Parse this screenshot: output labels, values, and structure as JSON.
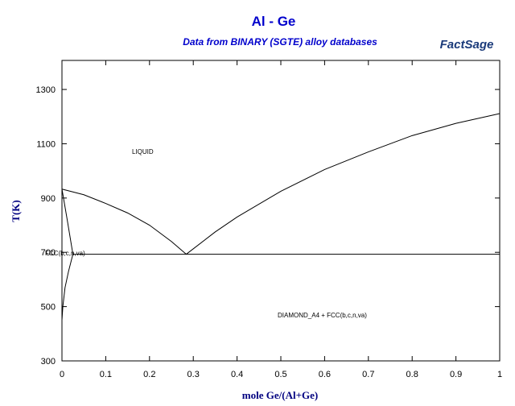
{
  "chart_data": {
    "type": "line",
    "title": "Al - Ge",
    "subtitle": "Data from BINARY (SGTE) alloy databases",
    "logo": "FactSage",
    "xlabel": "mole Ge/(Al+Ge)",
    "ylabel": "T(K)",
    "xlim": [
      0,
      1
    ],
    "xticks": [
      0,
      0.1,
      0.2,
      0.3,
      0.4,
      0.5,
      0.6,
      0.7,
      0.8,
      0.9,
      1
    ],
    "ylim": [
      300,
      1407
    ],
    "yticks": [
      300,
      500,
      700,
      900,
      1100,
      1300
    ],
    "series": [
      {
        "color": "#000000",
        "x": [
          0,
          0.05,
          0.1,
          0.15,
          0.2,
          0.25,
          0.284
        ],
        "values": [
          933,
          912,
          880,
          845,
          800,
          740,
          693
        ]
      },
      {
        "color": "#000000",
        "x": [
          0.284,
          0.35,
          0.4,
          0.5,
          0.6,
          0.7,
          0.8,
          0.9,
          1
        ],
        "values": [
          693,
          775,
          830,
          925,
          1005,
          1070,
          1130,
          1175,
          1211
        ]
      },
      {
        "color": "#000000",
        "x": [
          0.025,
          1
        ],
        "values": [
          693,
          693
        ]
      },
      {
        "color": "#000000",
        "x": [
          0,
          0.012,
          0.025
        ],
        "values": [
          933,
          820,
          693
        ]
      },
      {
        "color": "#000000",
        "x": [
          0.025,
          0.015,
          0.007,
          0.002,
          0
        ],
        "values": [
          693,
          630,
          570,
          500,
          450
        ]
      }
    ],
    "annotations": [
      "LIQUID",
      "FCC(b,c,n,va)",
      "DIAMOND_A4 + FCC(b,c,n,va)"
    ]
  }
}
